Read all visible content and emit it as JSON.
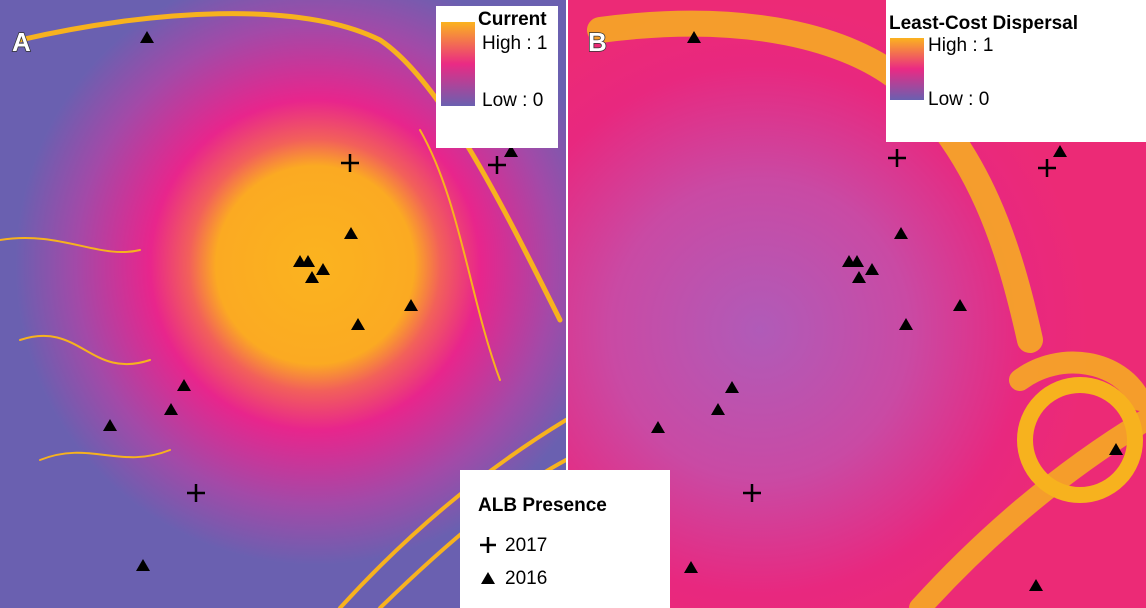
{
  "panels": [
    {
      "label": "A",
      "legend": {
        "title": "Current",
        "high": "High : 1",
        "low": "Low : 0"
      }
    },
    {
      "label": "B",
      "legend": {
        "title": "Least-Cost Dispersal",
        "high": "High : 1",
        "low": "Low : 0"
      }
    }
  ],
  "presence_legend": {
    "title": "ALB Presence",
    "items": [
      "2017",
      "2016"
    ]
  }
}
